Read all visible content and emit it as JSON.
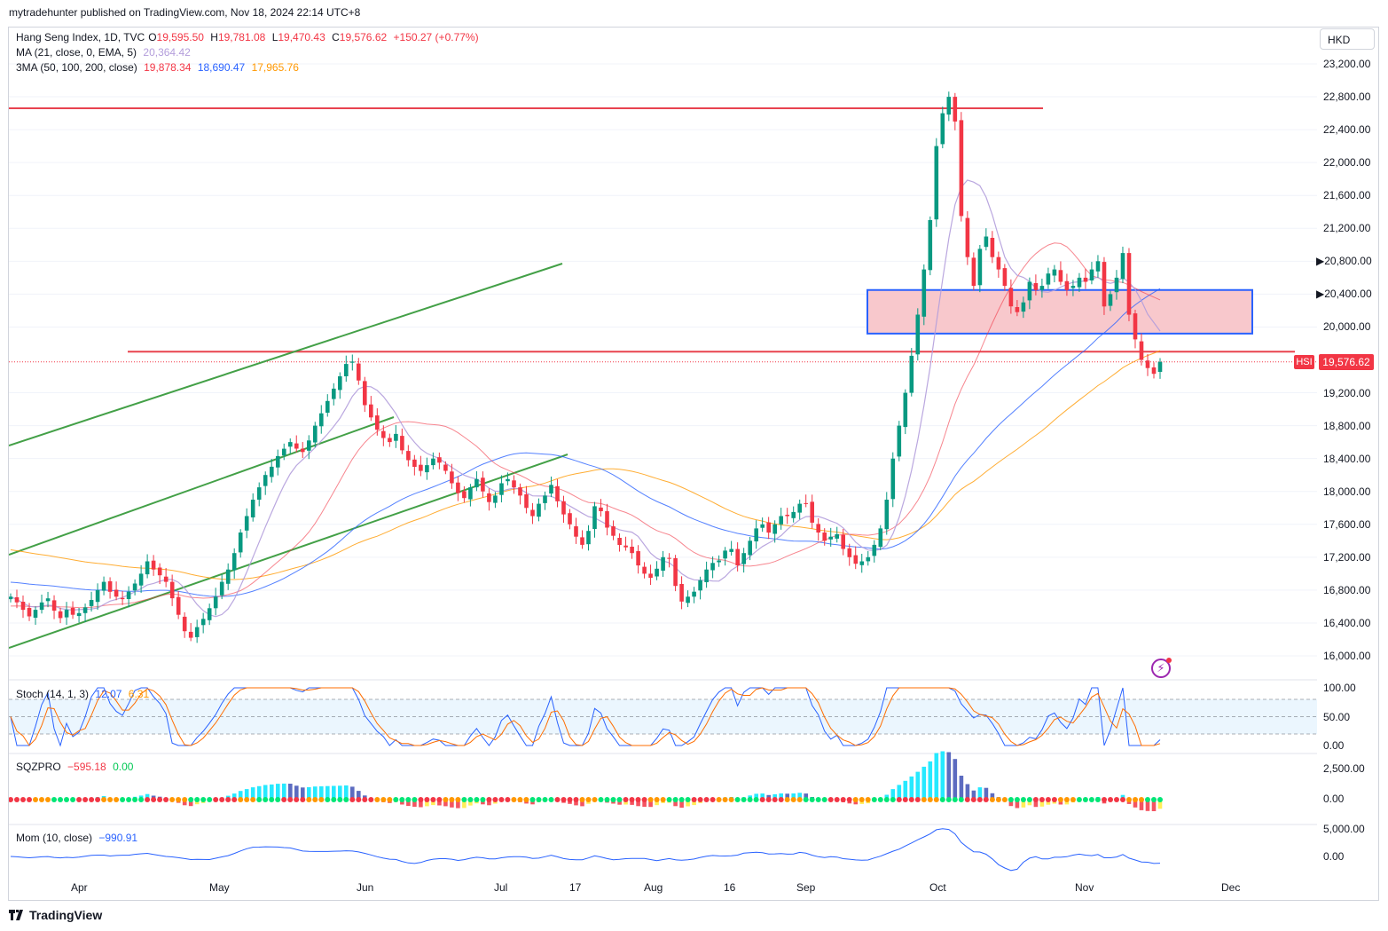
{
  "header": {
    "publisher": "mytradehunter published on TradingView.com, Nov 18, 2024 22:14 UTC+8"
  },
  "legend": {
    "symbol": "Hang Seng Index, 1D, TVC",
    "o_label": "O",
    "o": "19,595.50",
    "h_label": "H",
    "h": "19,781.08",
    "l_label": "L",
    "l": "19,470.43",
    "c_label": "C",
    "c": "19,576.62",
    "change": "+150.27 (+0.77%)",
    "ma_label": "MA (21, close, 0, EMA, 5)",
    "ma_value": "20,364.42",
    "ma3_label": "3MA (50, 100, 200, close)",
    "ma3_v1": "19,878.34",
    "ma3_v2": "18,690.47",
    "ma3_v3": "17,965.76"
  },
  "currency": "HKD",
  "price_tag": "19,576.62",
  "symbol_tag": "HSI",
  "indicators": {
    "stoch_label": "Stoch (14, 1, 3)",
    "stoch_k": "12.07",
    "stoch_d": "6.31",
    "sqz_label": "SQZPRO",
    "sqz_v1": "−595.18",
    "sqz_v2": "0.00",
    "mom_label": "Mom (10, close)",
    "mom_v": "−990.91"
  },
  "footer": {
    "brand": "TradingView"
  },
  "colors": {
    "up": "#089981",
    "down": "#f23645",
    "ma21": "#b39ddb",
    "ma50": "#f23645",
    "ma100": "#2962ff",
    "ma200": "#ff9800",
    "trend": "#43a047",
    "zone_fill": "#f8c8cc",
    "zone_border": "#2962ff"
  },
  "chart_data": [
    {
      "type": "candlestick",
      "title": "Hang Seng Index, 1D, TVC",
      "y_axis_ticks": [
        "23,200.00",
        "22,800.00",
        "22,400.00",
        "22,000.00",
        "21,600.00",
        "21,200.00",
        "20,800.00",
        "20,400.00",
        "20,000.00",
        "19,200.00",
        "18,800.00",
        "18,400.00",
        "18,000.00",
        "17,600.00",
        "17,200.00",
        "16,800.00",
        "16,400.00",
        "16,000.00"
      ],
      "x_axis_ticks": [
        "Apr",
        "May",
        "Jun",
        "Jul",
        "17",
        "Aug",
        "16",
        "Sep",
        "Oct",
        "Nov",
        "Dec"
      ],
      "ylim": [
        15850,
        23450
      ],
      "close_series_approx": [
        16720,
        16650,
        16560,
        16480,
        16560,
        16650,
        16700,
        16550,
        16460,
        16560,
        16500,
        16520,
        16590,
        16680,
        16800,
        16900,
        16780,
        16720,
        16690,
        16780,
        16880,
        17000,
        17150,
        17050,
        16980,
        16900,
        16700,
        16500,
        16300,
        16220,
        16350,
        16450,
        16580,
        16720,
        16900,
        17050,
        17250,
        17500,
        17700,
        17900,
        18050,
        18200,
        18300,
        18430,
        18520,
        18600,
        18520,
        18480,
        18620,
        18800,
        18950,
        19100,
        19250,
        19400,
        19550,
        19580,
        19350,
        19050,
        18900,
        18750,
        18650,
        18600,
        18700,
        18500,
        18380,
        18300,
        18250,
        18320,
        18400,
        18350,
        18250,
        18100,
        17980,
        17920,
        18050,
        18150,
        18000,
        17870,
        17950,
        18100,
        18150,
        18050,
        17950,
        17800,
        17700,
        17850,
        17950,
        18080,
        17880,
        17720,
        17600,
        17450,
        17350,
        17520,
        17820,
        17760,
        17560,
        17460,
        17350,
        17320,
        17250,
        17100,
        17000,
        16950,
        17060,
        17200,
        17180,
        16850,
        16660,
        16720,
        16780,
        16920,
        17050,
        17130,
        17160,
        17280,
        17300,
        17100,
        17250,
        17400,
        17550,
        17600,
        17500,
        17600,
        17700,
        17700,
        17750,
        17850,
        17850,
        17620,
        17500,
        17400,
        17450,
        17480,
        17300,
        17200,
        17120,
        17150,
        17200,
        17350,
        17550,
        17900,
        18400,
        18800,
        19200,
        19650,
        20150,
        20700,
        21300,
        22200,
        22600,
        22800,
        22500,
        21350,
        20850,
        20500,
        20950,
        21100,
        20850,
        20700,
        20500,
        20250,
        20180,
        20300,
        20550,
        20450,
        20500,
        20650,
        20700,
        20550,
        20450,
        20500,
        20600,
        20550,
        20700,
        20800,
        20250,
        20400,
        20600,
        20900,
        20150,
        19850,
        19600,
        19500,
        19430,
        19576
      ]
    },
    {
      "type": "line",
      "title": "Stoch (14, 1, 3)",
      "y_axis_ticks": [
        "100.00",
        "50.00",
        "0.00"
      ],
      "ylim": [
        0,
        100
      ],
      "k_last": 12.07,
      "d_last": 6.31
    },
    {
      "type": "bar",
      "title": "SQZPRO",
      "y_axis_ticks": [
        "2,500.00",
        "0.00"
      ],
      "value_last": -595.18
    },
    {
      "type": "line",
      "title": "Mom (10, close)",
      "y_axis_ticks": [
        "5,000.00",
        "0.00"
      ],
      "value_last": -990.91
    }
  ]
}
